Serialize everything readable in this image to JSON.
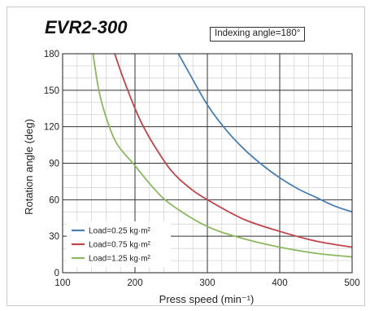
{
  "header": {
    "title": "EVR2-300",
    "note": "Indexing angle=180°"
  },
  "chart_data": {
    "type": "line",
    "title": "EVR2-300",
    "annotation": "Indexing angle=180°",
    "xlabel": "Press speed (min⁻¹)",
    "ylabel": "Rotation angle (deg)",
    "xlim": [
      100,
      500
    ],
    "ylim": [
      0,
      180
    ],
    "xticks": [
      100,
      200,
      300,
      400,
      500
    ],
    "yticks": [
      0,
      30,
      60,
      90,
      120,
      150,
      180
    ],
    "grid": true,
    "legend_position": "bottom-left",
    "series": [
      {
        "name": "Load=0.25 kg·m²",
        "color": "#4a7fb6",
        "x": [
          260,
          275,
          300,
          325,
          350,
          375,
          400,
          425,
          450,
          475,
          500
        ],
        "y": [
          180,
          164,
          138,
          118,
          102,
          89,
          78,
          69,
          62,
          55,
          50
        ]
      },
      {
        "name": "Load=0.75 kg·m²",
        "color": "#c0454b",
        "x": [
          172,
          180,
          190,
          200,
          210,
          225,
          250,
          275,
          300,
          350,
          400,
          450,
          500
        ],
        "y": [
          180,
          166,
          150,
          135,
          122,
          106,
          84,
          70,
          60,
          44,
          34,
          26,
          21
        ]
      },
      {
        "name": "Load=1.25 kg·m²",
        "color": "#8cb860",
        "x": [
          142,
          150,
          160,
          175,
          200,
          225,
          250,
          300,
          350,
          400,
          450,
          500
        ],
        "y": [
          180,
          150,
          128,
          106,
          88,
          70,
          56,
          38,
          28,
          21,
          16,
          13
        ]
      }
    ]
  }
}
